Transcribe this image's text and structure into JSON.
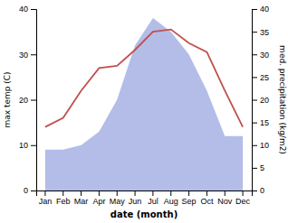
{
  "chart_data": {
    "type": "line",
    "xlabel": "date (month)",
    "ylabel": "max temp (C)",
    "y2label": "med. precipitation (kg/m2)",
    "categories": [
      "Jan",
      "Feb",
      "Mar",
      "Apr",
      "May",
      "Jun",
      "Jul",
      "Aug",
      "Sep",
      "Oct",
      "Nov",
      "Dec"
    ],
    "series": [
      {
        "type": "area",
        "axis": "y2",
        "color": "#b3bde8",
        "values": [
          9,
          9,
          10,
          13,
          20,
          32,
          38,
          35,
          30,
          22,
          12,
          12
        ]
      },
      {
        "type": "line",
        "color": "#c0504d",
        "values": [
          14,
          16,
          22,
          27,
          27.5,
          31,
          35,
          35.5,
          32.5,
          30.5,
          22,
          14
        ]
      }
    ],
    "ylim": [
      0,
      40
    ],
    "yticks": [
      0,
      10,
      20,
      30,
      40
    ],
    "y2lim": [
      0,
      40
    ],
    "y2ticks": [
      0,
      5,
      10,
      15,
      20,
      25,
      30,
      35,
      40
    ],
    "grid": false
  }
}
